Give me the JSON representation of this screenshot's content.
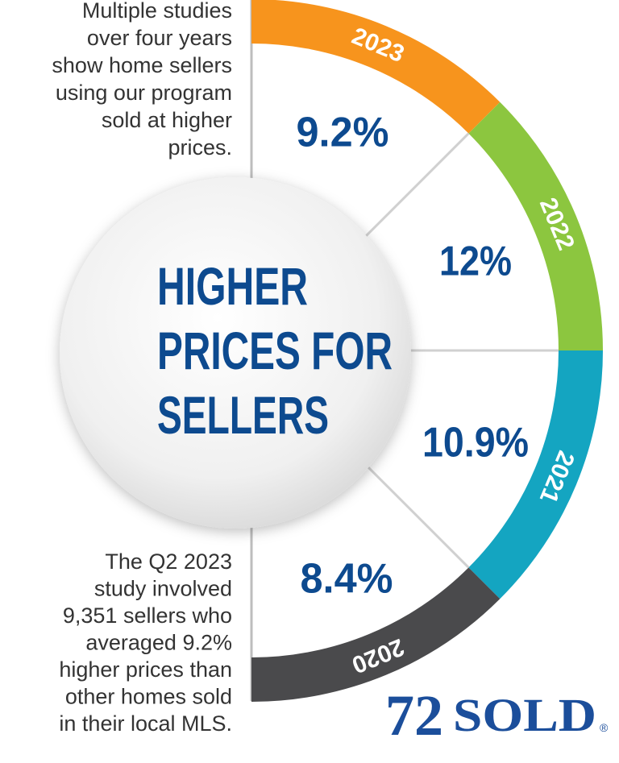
{
  "intro": {
    "lines": [
      "Multiple studies",
      "over four years",
      "show home sellers",
      "using our program",
      "sold at higher",
      "prices."
    ]
  },
  "headline": {
    "lines": [
      "HIGHER",
      "PRICES FOR",
      "SELLERS"
    ]
  },
  "segments": [
    {
      "year": "2023",
      "value": "9.2%",
      "color": "#f7941d"
    },
    {
      "year": "2022",
      "value": "12%",
      "color": "#8cc63f"
    },
    {
      "year": "2021",
      "value": "10.9%",
      "color": "#14a5c1"
    },
    {
      "year": "2020",
      "value": "8.4%",
      "color": "#4a4a4c"
    }
  ],
  "footnote": {
    "lines": [
      "The Q2 2023",
      "study involved",
      "9,351 sellers who",
      "averaged 9.2%",
      "higher prices than",
      "other homes sold",
      "in their local MLS."
    ]
  },
  "logo": {
    "number": "72",
    "word": "SOLD",
    "mark": "®"
  }
}
